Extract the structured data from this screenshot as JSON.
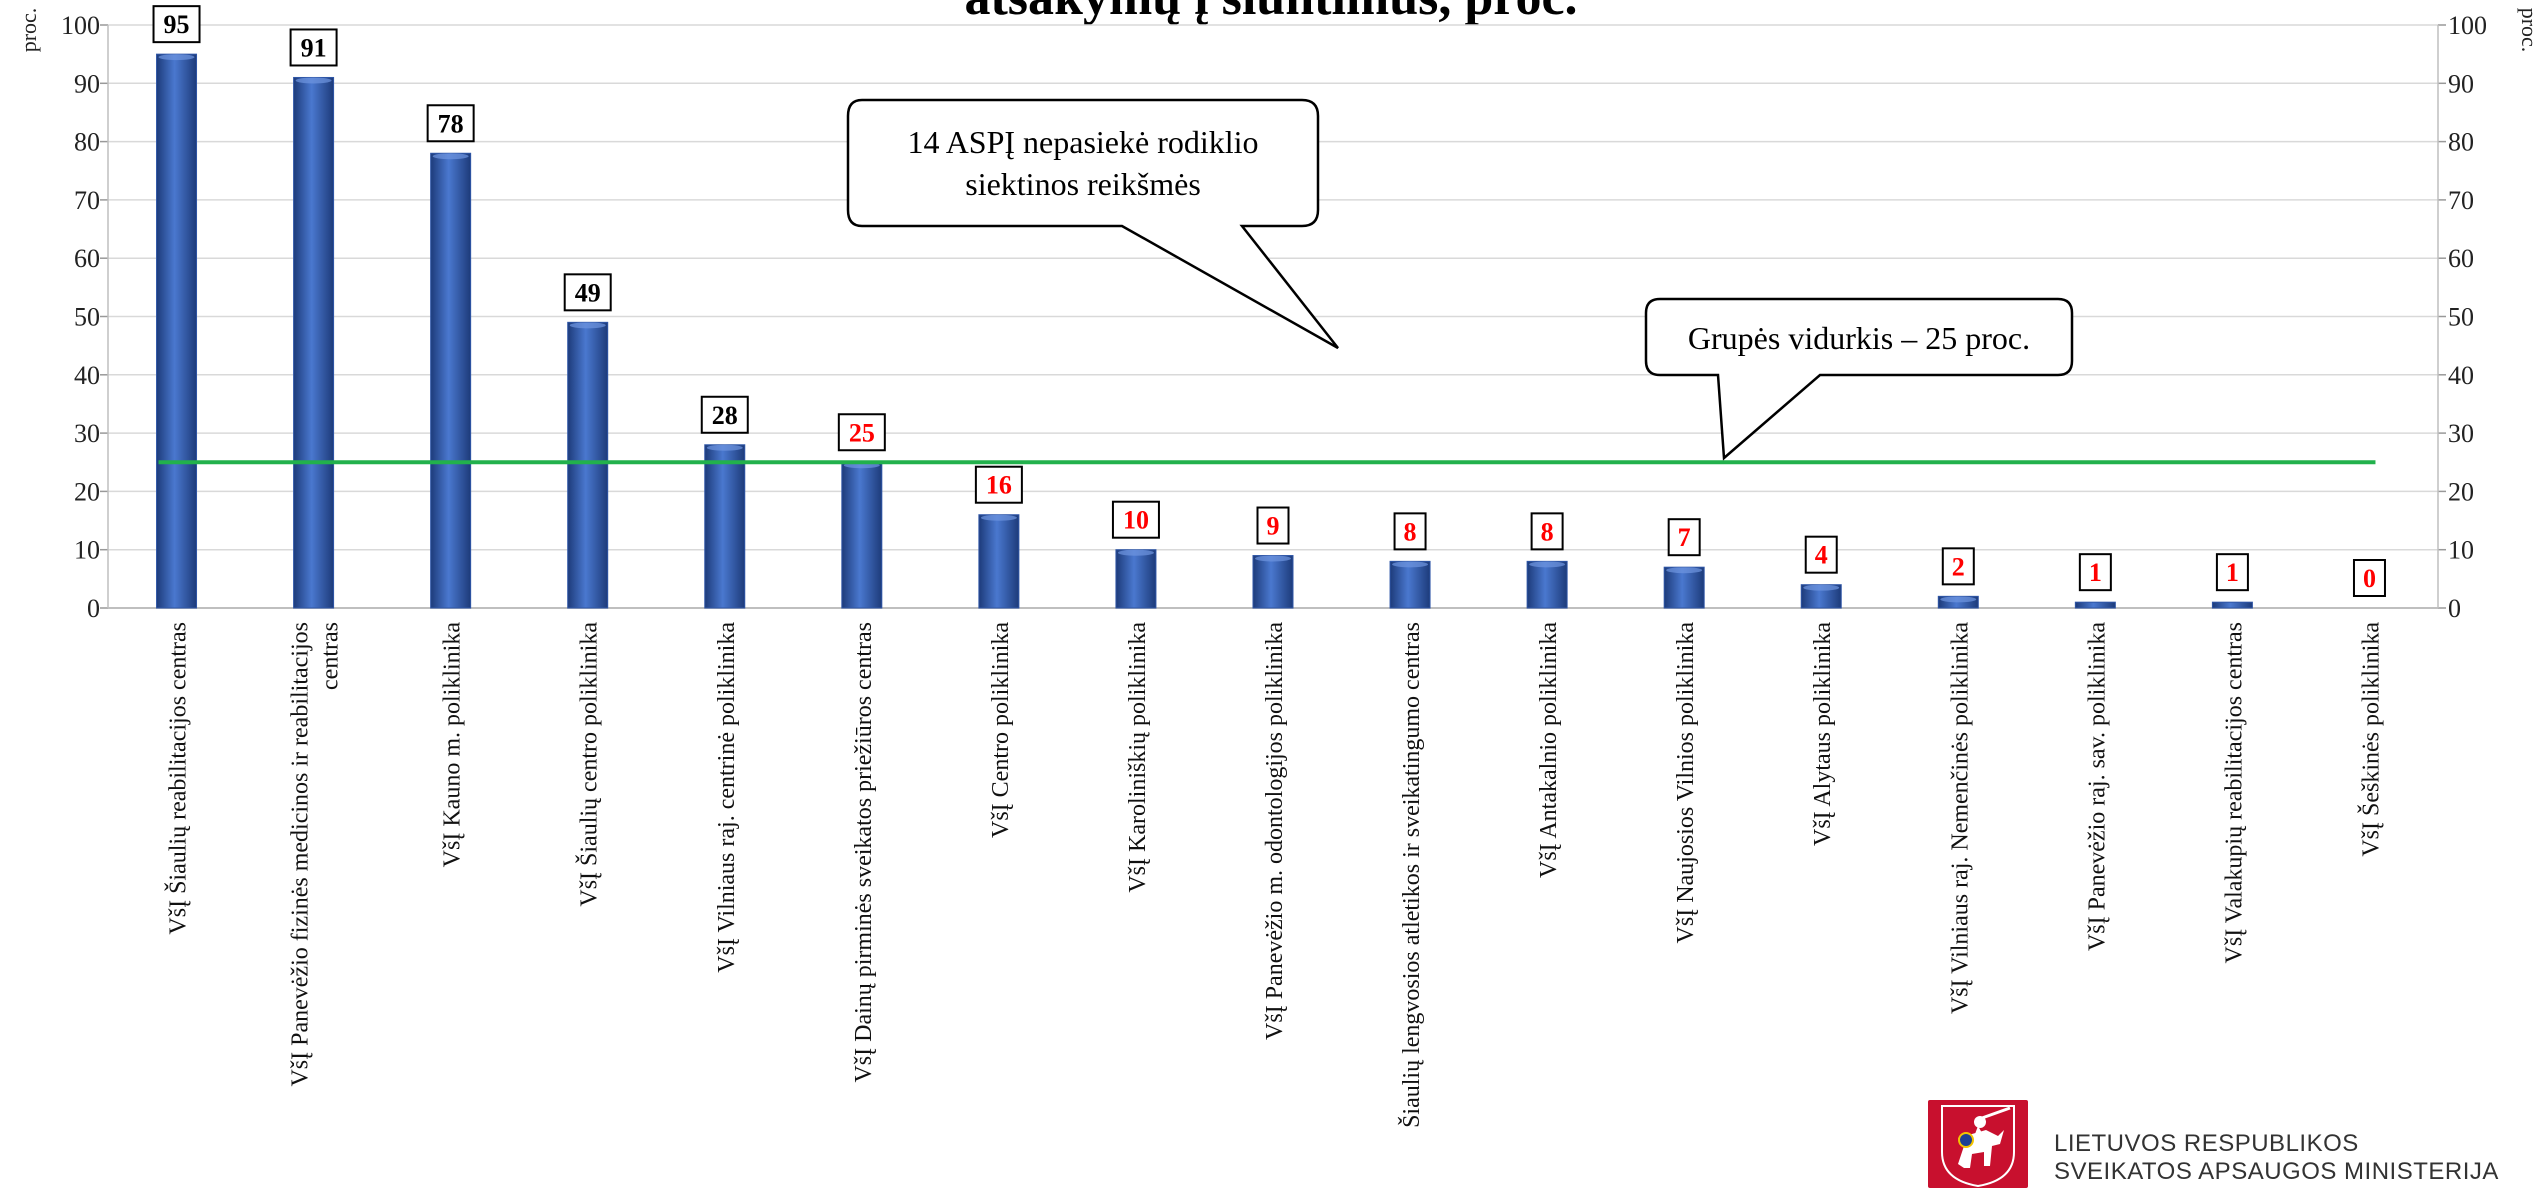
{
  "title": "atsakymų į siuntimus, proc.",
  "unit_label": "proc.",
  "callouts": {
    "not_reached": [
      "14 ASPĮ nepasiekė rodiklio",
      "siektinos reikšmės"
    ],
    "group_average": "Grupės vidurkis – 25 proc."
  },
  "footer": {
    "ministry_line1": "LIETUVOS RESPUBLIKOS",
    "ministry_line2": "SVEIKATOS APSAUGOS MINISTERIJA"
  },
  "colors": {
    "bar": "#2f56a6",
    "average_line": "#22b14c",
    "above_average_label": "#000000",
    "below_average_label": "#ff0000",
    "gridline": "#d9d9d9"
  },
  "chart_data": {
    "type": "bar",
    "ylim": [
      0,
      100
    ],
    "yticks": [
      0,
      10,
      20,
      30,
      40,
      50,
      60,
      70,
      80,
      90,
      100
    ],
    "average": 25,
    "grid": true,
    "categories": [
      [
        "VšĮ Šiaulių reabilitacijos centras"
      ],
      [
        "VšĮ Panevėžio fizinės medicinos ir reabilitacijos",
        "centras"
      ],
      [
        "VšĮ Kauno m. poliklinika"
      ],
      [
        "VšĮ Šiaulių centro poliklinika"
      ],
      [
        "VšĮ Vilniaus raj. centrinė poliklinika"
      ],
      [
        "VšĮ Dainų pirminės sveikatos priežiūros centras"
      ],
      [
        "VšĮ Centro poliklinika"
      ],
      [
        "VšĮ Karoliniškių poliklinika"
      ],
      [
        "VšĮ Panevėžio m. odontologijos poliklinika"
      ],
      [
        "Šiaulių lengvosios atletikos ir sveikatingumo centras"
      ],
      [
        "VšĮ Antakalnio poliklinika"
      ],
      [
        "VšĮ Naujosios Vilnios poliklinika"
      ],
      [
        "VšĮ Alytaus poliklinika"
      ],
      [
        "VšĮ Vilniaus raj. Nemenčinės poliklinika"
      ],
      [
        "VšĮ Panevėžio raj. sav. poliklinika"
      ],
      [
        "VšĮ Valakupių reabilitacijos centras"
      ],
      [
        "VšĮ Šeškinės poliklinika"
      ]
    ],
    "values": [
      95,
      91,
      78,
      49,
      28,
      25,
      16,
      10,
      9,
      8,
      8,
      7,
      4,
      2,
      1,
      1,
      0
    ]
  }
}
